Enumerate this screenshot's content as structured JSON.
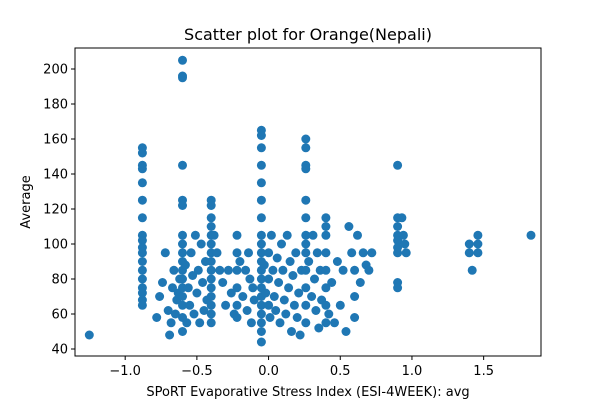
{
  "chart_data": {
    "type": "scatter",
    "title": "Scatter plot for Orange(Nepali)",
    "xlabel": "SPoRT Evaporative Stress Index (ESI-4WEEK): avg",
    "ylabel": "Average",
    "xlim": [
      -1.35,
      1.9
    ],
    "ylim": [
      36,
      212
    ],
    "xticks": [
      -1.0,
      -0.5,
      0.0,
      0.5,
      1.0,
      1.5
    ],
    "xtick_labels": [
      "−1.0",
      "−0.5",
      "0.0",
      "0.5",
      "1.0",
      "1.5"
    ],
    "yticks": [
      40,
      60,
      80,
      100,
      120,
      140,
      160,
      180,
      200
    ],
    "ytick_labels": [
      "40",
      "60",
      "80",
      "100",
      "120",
      "140",
      "160",
      "180",
      "200"
    ],
    "grid": false,
    "marker_color": "#1f77b4",
    "points": [
      [
        -1.25,
        48
      ],
      [
        -0.88,
        155
      ],
      [
        -0.88,
        152
      ],
      [
        -0.88,
        145
      ],
      [
        -0.88,
        143
      ],
      [
        -0.88,
        135
      ],
      [
        -0.88,
        125
      ],
      [
        -0.88,
        115
      ],
      [
        -0.88,
        105
      ],
      [
        -0.88,
        102
      ],
      [
        -0.88,
        98
      ],
      [
        -0.88,
        95
      ],
      [
        -0.88,
        90
      ],
      [
        -0.88,
        85
      ],
      [
        -0.88,
        80
      ],
      [
        -0.88,
        75
      ],
      [
        -0.88,
        72
      ],
      [
        -0.88,
        68
      ],
      [
        -0.88,
        65
      ],
      [
        -0.78,
        58
      ],
      [
        -0.76,
        70
      ],
      [
        -0.74,
        78
      ],
      [
        -0.72,
        95
      ],
      [
        -0.7,
        62
      ],
      [
        -0.69,
        48
      ],
      [
        -0.68,
        55
      ],
      [
        -0.67,
        75
      ],
      [
        -0.66,
        85
      ],
      [
        -0.65,
        60
      ],
      [
        -0.64,
        68
      ],
      [
        -0.63,
        72
      ],
      [
        -0.62,
        80
      ],
      [
        -0.6,
        205
      ],
      [
        -0.6,
        196
      ],
      [
        -0.6,
        195
      ],
      [
        -0.6,
        145
      ],
      [
        -0.6,
        125
      ],
      [
        -0.6,
        122
      ],
      [
        -0.6,
        105
      ],
      [
        -0.6,
        100
      ],
      [
        -0.6,
        95
      ],
      [
        -0.6,
        90
      ],
      [
        -0.6,
        85
      ],
      [
        -0.6,
        80
      ],
      [
        -0.6,
        75
      ],
      [
        -0.6,
        70
      ],
      [
        -0.6,
        65
      ],
      [
        -0.6,
        58
      ],
      [
        -0.6,
        50
      ],
      [
        -0.58,
        88
      ],
      [
        -0.57,
        55
      ],
      [
        -0.56,
        75
      ],
      [
        -0.55,
        65
      ],
      [
        -0.54,
        95
      ],
      [
        -0.53,
        82
      ],
      [
        -0.52,
        60
      ],
      [
        -0.51,
        105
      ],
      [
        -0.5,
        72
      ],
      [
        -0.49,
        85
      ],
      [
        -0.48,
        55
      ],
      [
        -0.47,
        100
      ],
      [
        -0.46,
        78
      ],
      [
        -0.45,
        62
      ],
      [
        -0.44,
        90
      ],
      [
        -0.43,
        68
      ],
      [
        -0.4,
        125
      ],
      [
        -0.4,
        122
      ],
      [
        -0.4,
        115
      ],
      [
        -0.4,
        110
      ],
      [
        -0.4,
        105
      ],
      [
        -0.4,
        100
      ],
      [
        -0.4,
        95
      ],
      [
        -0.4,
        90
      ],
      [
        -0.4,
        85
      ],
      [
        -0.4,
        80
      ],
      [
        -0.4,
        75
      ],
      [
        -0.4,
        70
      ],
      [
        -0.4,
        65
      ],
      [
        -0.4,
        60
      ],
      [
        -0.4,
        55
      ],
      [
        -0.38,
        105
      ],
      [
        -0.36,
        95
      ],
      [
        -0.34,
        85
      ],
      [
        -0.32,
        78
      ],
      [
        -0.3,
        65
      ],
      [
        -0.28,
        85
      ],
      [
        -0.26,
        72
      ],
      [
        -0.24,
        60
      ],
      [
        -0.22,
        105
      ],
      [
        -0.22,
        95
      ],
      [
        -0.22,
        85
      ],
      [
        -0.22,
        75
      ],
      [
        -0.22,
        65
      ],
      [
        -0.22,
        58
      ],
      [
        -0.2,
        90
      ],
      [
        -0.18,
        70
      ],
      [
        -0.16,
        85
      ],
      [
        -0.15,
        62
      ],
      [
        -0.14,
        95
      ],
      [
        -0.13,
        80
      ],
      [
        -0.12,
        55
      ],
      [
        -0.11,
        75
      ],
      [
        -0.1,
        68
      ],
      [
        -0.05,
        165
      ],
      [
        -0.05,
        162
      ],
      [
        -0.05,
        155
      ],
      [
        -0.05,
        145
      ],
      [
        -0.05,
        135
      ],
      [
        -0.05,
        125
      ],
      [
        -0.05,
        115
      ],
      [
        -0.05,
        105
      ],
      [
        -0.05,
        100
      ],
      [
        -0.05,
        95
      ],
      [
        -0.05,
        90
      ],
      [
        -0.05,
        85
      ],
      [
        -0.05,
        80
      ],
      [
        -0.05,
        75
      ],
      [
        -0.05,
        70
      ],
      [
        -0.05,
        65
      ],
      [
        -0.05,
        60
      ],
      [
        -0.05,
        55
      ],
      [
        -0.05,
        50
      ],
      [
        -0.05,
        44
      ],
      [
        -0.03,
        88
      ],
      [
        -0.02,
        72
      ],
      [
        0.0,
        95
      ],
      [
        0.0,
        80
      ],
      [
        0.0,
        65
      ],
      [
        0.01,
        58
      ],
      [
        0.02,
        105
      ],
      [
        0.03,
        85
      ],
      [
        0.04,
        70
      ],
      [
        0.05,
        62
      ],
      [
        0.06,
        92
      ],
      [
        0.07,
        78
      ],
      [
        0.08,
        55
      ],
      [
        0.09,
        100
      ],
      [
        0.1,
        85
      ],
      [
        0.11,
        68
      ],
      [
        0.12,
        60
      ],
      [
        0.13,
        105
      ],
      [
        0.14,
        75
      ],
      [
        0.15,
        90
      ],
      [
        0.16,
        50
      ],
      [
        0.17,
        82
      ],
      [
        0.18,
        65
      ],
      [
        0.19,
        95
      ],
      [
        0.2,
        58
      ],
      [
        0.21,
        72
      ],
      [
        0.22,
        48
      ],
      [
        0.23,
        85
      ],
      [
        0.26,
        160
      ],
      [
        0.26,
        155
      ],
      [
        0.26,
        145
      ],
      [
        0.26,
        143
      ],
      [
        0.26,
        125
      ],
      [
        0.26,
        115
      ],
      [
        0.26,
        105
      ],
      [
        0.26,
        100
      ],
      [
        0.26,
        95
      ],
      [
        0.26,
        85
      ],
      [
        0.26,
        75
      ],
      [
        0.26,
        65
      ],
      [
        0.26,
        55
      ],
      [
        0.28,
        90
      ],
      [
        0.3,
        70
      ],
      [
        0.31,
        105
      ],
      [
        0.32,
        80
      ],
      [
        0.33,
        62
      ],
      [
        0.34,
        95
      ],
      [
        0.35,
        52
      ],
      [
        0.36,
        85
      ],
      [
        0.37,
        68
      ],
      [
        0.4,
        115
      ],
      [
        0.4,
        110
      ],
      [
        0.4,
        105
      ],
      [
        0.4,
        95
      ],
      [
        0.4,
        85
      ],
      [
        0.4,
        75
      ],
      [
        0.4,
        65
      ],
      [
        0.4,
        55
      ],
      [
        0.42,
        60
      ],
      [
        0.44,
        78
      ],
      [
        0.46,
        55
      ],
      [
        0.48,
        90
      ],
      [
        0.5,
        65
      ],
      [
        0.52,
        85
      ],
      [
        0.54,
        50
      ],
      [
        0.56,
        110
      ],
      [
        0.58,
        95
      ],
      [
        0.6,
        85
      ],
      [
        0.6,
        70
      ],
      [
        0.6,
        58
      ],
      [
        0.62,
        105
      ],
      [
        0.64,
        78
      ],
      [
        0.66,
        95
      ],
      [
        0.68,
        88
      ],
      [
        0.7,
        85
      ],
      [
        0.72,
        95
      ],
      [
        0.9,
        145
      ],
      [
        0.9,
        115
      ],
      [
        0.9,
        110
      ],
      [
        0.9,
        105
      ],
      [
        0.9,
        102
      ],
      [
        0.9,
        98
      ],
      [
        0.9,
        95
      ],
      [
        0.9,
        78
      ],
      [
        0.9,
        75
      ],
      [
        0.93,
        115
      ],
      [
        0.94,
        105
      ],
      [
        0.95,
        100
      ],
      [
        0.96,
        95
      ],
      [
        1.4,
        100
      ],
      [
        1.4,
        95
      ],
      [
        1.42,
        85
      ],
      [
        1.46,
        105
      ],
      [
        1.46,
        100
      ],
      [
        1.46,
        95
      ],
      [
        1.83,
        105
      ]
    ]
  }
}
